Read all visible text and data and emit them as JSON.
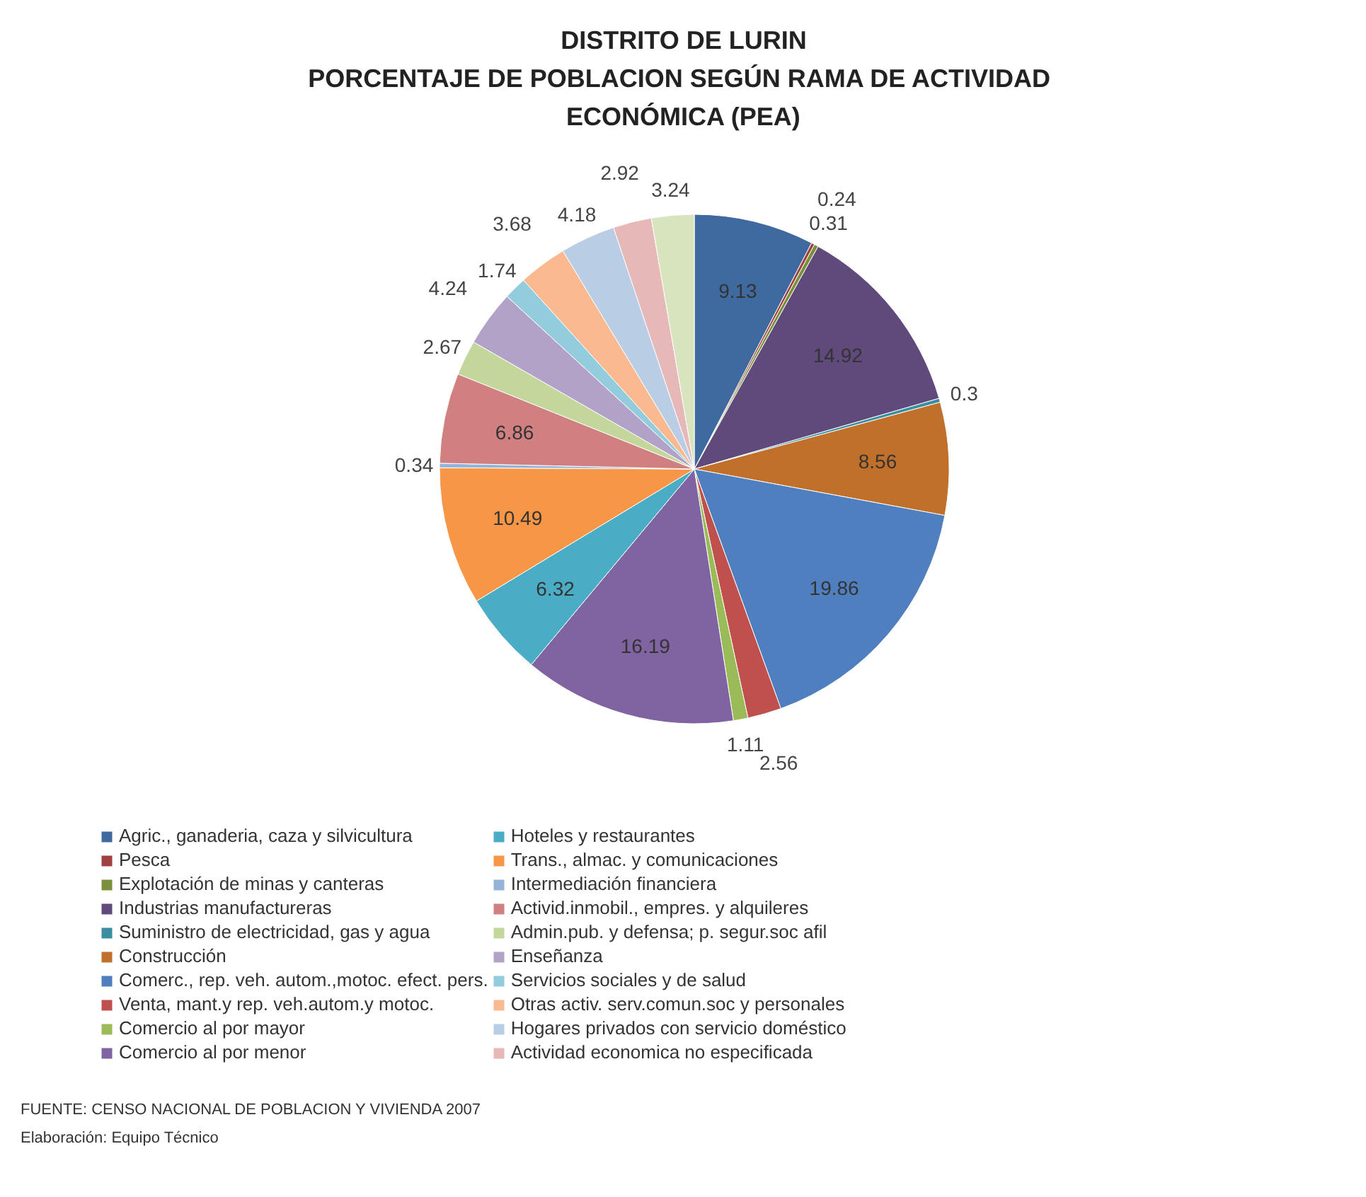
{
  "chart_data": {
    "type": "pie",
    "title": "DISTRITO DE LURIN\nPORCENTAJE DE POBLACION SEGÚN  RAMA DE ACTIVIDAD\nECONÓMICA (PEA)",
    "categories": [
      "Agric., ganaderia, caza y silvicultura",
      "Pesca",
      "Explotación de minas y canteras",
      "Industrias manufactureras",
      "Suministro de electricidad, gas y agua",
      "Construcción",
      "Comerc., rep. veh. autom.,motoc. efect. pers.",
      "Venta, mant.y rep. veh.autom.y motoc.",
      "Comercio al por mayor",
      "Comercio al por menor",
      "Hoteles y restaurantes",
      "Trans., almac. y comunicaciones",
      "Intermediación financiera",
      "Activid.inmobil., empres. y alquileres",
      "Admin.pub. y defensa; p. segur.soc afil",
      "Enseñanza",
      "Servicios sociales y de salud",
      "Otras activ. serv.comun.soc y personales",
      "Hogares privados con servicio doméstico",
      "Actividad economica no especificada",
      null
    ],
    "values": [
      9.13,
      0.24,
      0.31,
      14.92,
      0.3,
      8.56,
      19.86,
      2.56,
      1.11,
      16.19,
      6.32,
      10.49,
      0.34,
      6.86,
      2.67,
      4.24,
      1.74,
      3.68,
      4.18,
      2.92,
      3.24
    ],
    "colors": [
      "#3e6aa0",
      "#a04040",
      "#7a8f3a",
      "#604a7b",
      "#3a8ea0",
      "#c0702a",
      "#4f7fbf",
      "#c0504d",
      "#9bbb59",
      "#8064a2",
      "#4bacc6",
      "#f79646",
      "#95b3d7",
      "#d08080",
      "#c3d69b",
      "#b3a2c7",
      "#93cddd",
      "#fab98f",
      "#b9cde5",
      "#e6b9b8",
      "#d7e4bd"
    ],
    "data_labels": true,
    "legend": "bottom",
    "annotations": [
      "FUENTE: CENSO NACIONAL DE POBLACION Y VIVIENDA 2007",
      "Elaboración: Equipo Técnico"
    ]
  }
}
